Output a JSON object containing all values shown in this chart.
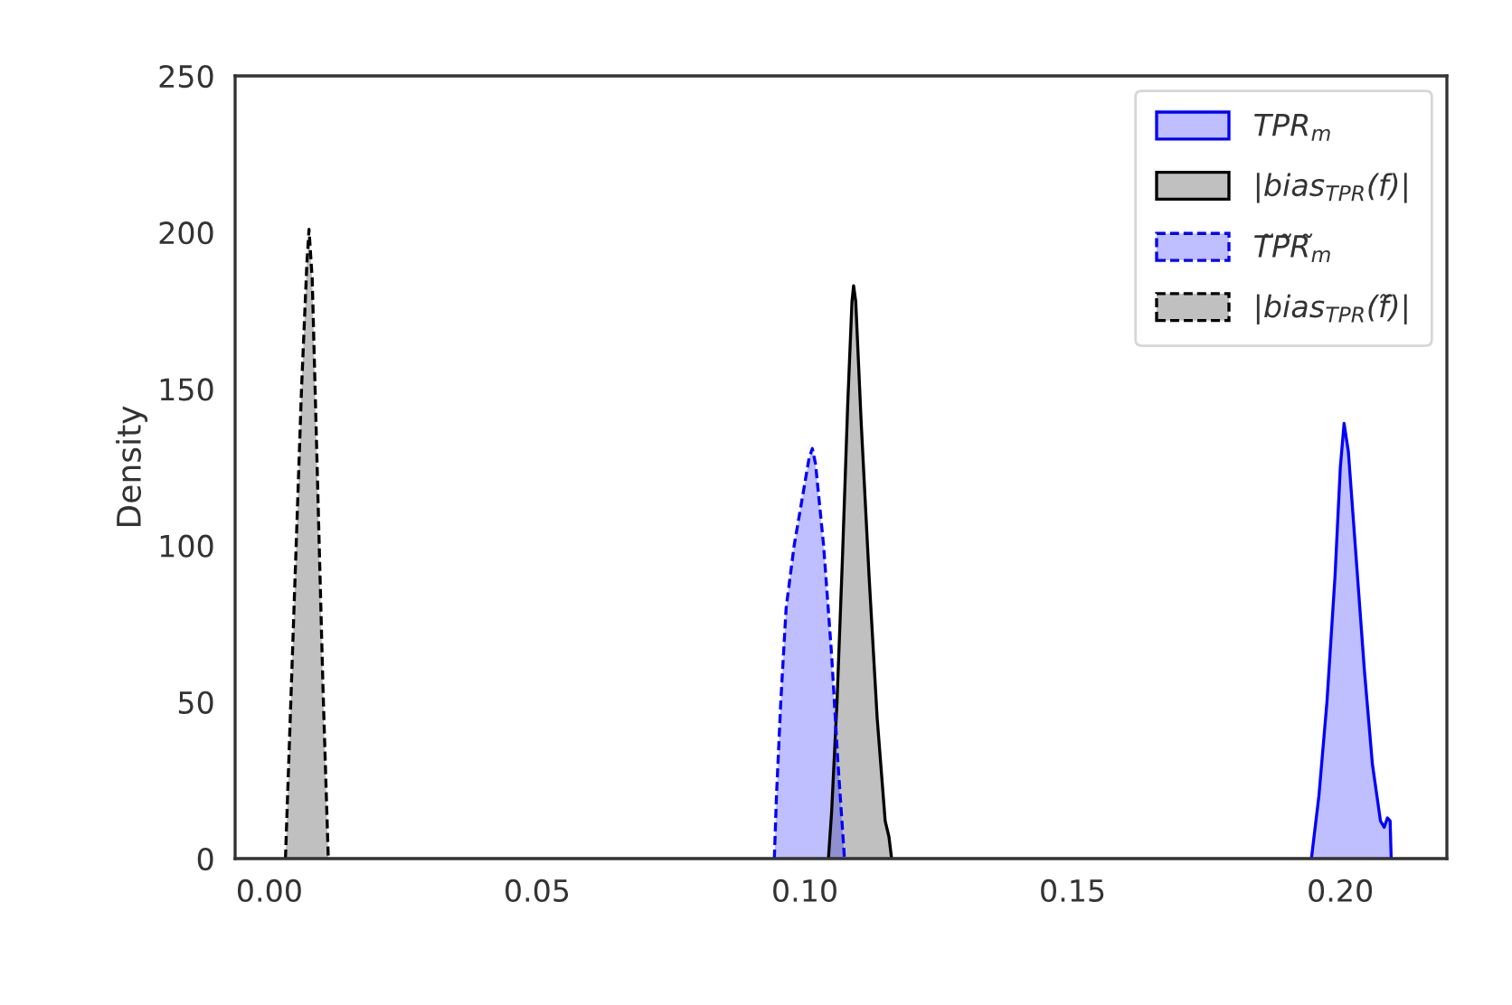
{
  "chart_data": {
    "type": "area",
    "ylabel": "Density",
    "xlim": [
      -0.0064,
      0.2199
    ],
    "ylim": [
      0,
      250
    ],
    "xticks": [
      {
        "value": 0,
        "label": "0.00"
      },
      {
        "value": 0.05,
        "label": "0.05"
      },
      {
        "value": 0.1,
        "label": "0.10"
      },
      {
        "value": 0.15,
        "label": "0.15"
      },
      {
        "value": 0.2,
        "label": "0.20"
      }
    ],
    "yticks": [
      0,
      50,
      100,
      150,
      200,
      250
    ],
    "grid": false,
    "legend": "top right",
    "series": [
      {
        "name": "TPR$_{m}$",
        "color": "#0000ff",
        "line_style": "solid",
        "x": [
          0.1946,
          0.196,
          0.1975,
          0.199,
          0.2,
          0.2007,
          0.2015,
          0.203,
          0.2045,
          0.206,
          0.2075,
          0.2082,
          0.2088,
          0.2093,
          0.2095
        ],
        "values": [
          0,
          20,
          50,
          90,
          125,
          139,
          130,
          95,
          60,
          30,
          12,
          10,
          13,
          12,
          0
        ]
      },
      {
        "name": "|bias$_{TPR}$(f)|",
        "color": "#000000",
        "line_style": "solid",
        "x": [
          0.1044,
          0.105,
          0.106,
          0.107,
          0.108,
          0.1088,
          0.1091,
          0.1095,
          0.1105,
          0.112,
          0.1135,
          0.115,
          0.1157,
          0.1162
        ],
        "values": [
          0,
          15,
          50,
          95,
          145,
          178,
          183,
          178,
          140,
          90,
          45,
          12,
          7,
          0
        ]
      },
      {
        "name": "T̃P̃R̃$_{m}$",
        "color": "#0000ff",
        "line_style": "dashed",
        "x": [
          0.0943,
          0.0947,
          0.0955,
          0.0965,
          0.098,
          0.0995,
          0.1008,
          0.1014,
          0.102,
          0.1035,
          0.105,
          0.1062,
          0.107,
          0.1074
        ],
        "values": [
          0,
          20,
          50,
          80,
          100,
          115,
          128,
          131,
          126,
          100,
          65,
          30,
          10,
          0
        ]
      },
      {
        "name": "|bias$_{TPR}$(f̃)|",
        "color": "#000000",
        "line_style": "dashed",
        "x": [
          0.003,
          0.004,
          0.005,
          0.006,
          0.007,
          0.0074,
          0.008,
          0.009,
          0.01,
          0.011
        ],
        "values": [
          0,
          50,
          100,
          150,
          190,
          201,
          185,
          120,
          55,
          0
        ]
      }
    ]
  }
}
